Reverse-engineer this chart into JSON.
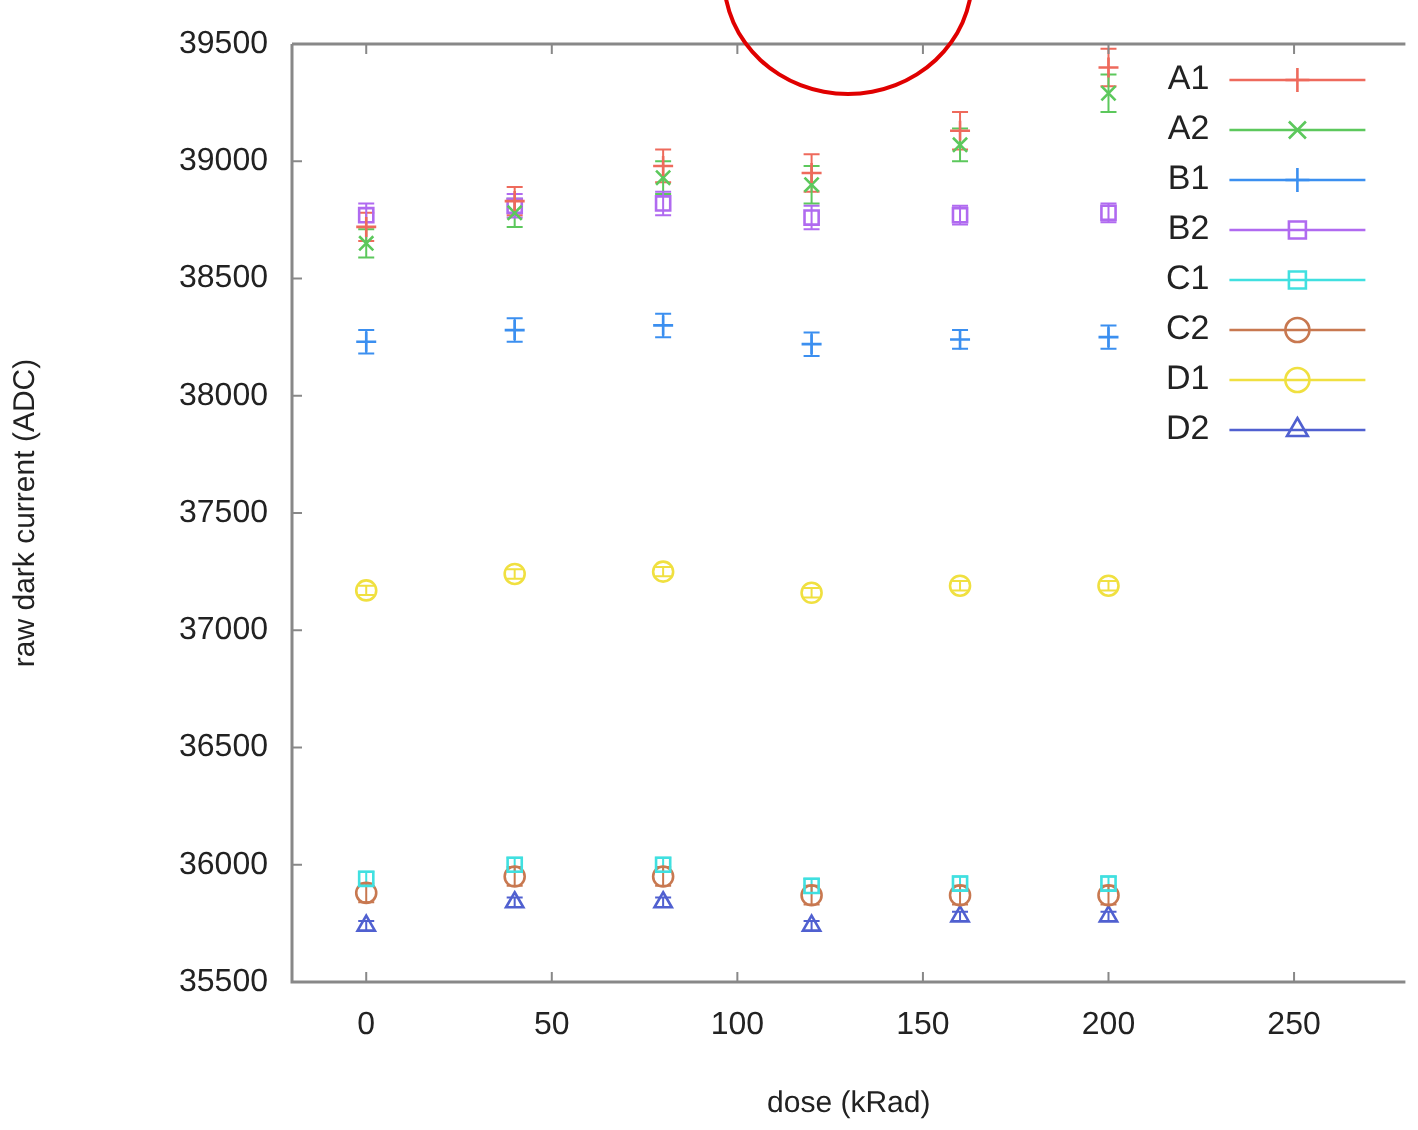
{
  "chart_data": {
    "type": "scatter",
    "xlabel": "dose (kRad)",
    "ylabel": "raw dark current (ADC)",
    "x": [
      0,
      40,
      80,
      120,
      160,
      200
    ],
    "xlim": [
      -20,
      280
    ],
    "xticks": [
      0,
      50,
      100,
      150,
      200,
      250
    ],
    "ylim": [
      35500,
      39500
    ],
    "yticks": [
      35500,
      36000,
      36500,
      37000,
      37500,
      38000,
      38500,
      39000,
      39500
    ],
    "grid": false,
    "legend": "top right",
    "line_style": "solid",
    "series": [
      {
        "name": "A1",
        "color": "#ee6a5c",
        "marker": "cross",
        "values": [
          38720,
          38830,
          38980,
          38950,
          39130,
          39400
        ],
        "errors": [
          60,
          60,
          70,
          80,
          80,
          80
        ]
      },
      {
        "name": "A2",
        "color": "#5cc85c",
        "marker": "x",
        "values": [
          38650,
          38780,
          38930,
          38900,
          39070,
          39290
        ],
        "errors": [
          60,
          60,
          70,
          80,
          70,
          80
        ]
      },
      {
        "name": "B1",
        "color": "#3b8ff0",
        "marker": "cross",
        "values": [
          38230,
          38280,
          38300,
          38220,
          38240,
          38250
        ],
        "errors": [
          50,
          50,
          50,
          50,
          40,
          50
        ]
      },
      {
        "name": "B2",
        "color": "#b06af0",
        "marker": "square",
        "values": [
          38770,
          38810,
          38820,
          38760,
          38770,
          38780
        ],
        "errors": [
          50,
          50,
          50,
          50,
          40,
          40
        ]
      },
      {
        "name": "C1",
        "color": "#40e0e0",
        "marker": "square",
        "values": [
          35940,
          36000,
          36000,
          35910,
          35920,
          35920
        ],
        "errors": [
          30,
          30,
          30,
          30,
          30,
          30
        ]
      },
      {
        "name": "C2",
        "color": "#c87850",
        "marker": "circle",
        "values": [
          35880,
          35950,
          35950,
          35870,
          35870,
          35870
        ],
        "errors": [
          40,
          40,
          40,
          40,
          40,
          40
        ]
      },
      {
        "name": "D1",
        "color": "#f0e040",
        "marker": "circle",
        "values": [
          37170,
          37240,
          37250,
          37160,
          37190,
          37190
        ],
        "errors": [
          20,
          20,
          20,
          20,
          20,
          20
        ]
      },
      {
        "name": "D2",
        "color": "#5060d0",
        "marker": "triangle",
        "values": [
          35740,
          35840,
          35840,
          35740,
          35780,
          35780
        ],
        "errors": [
          20,
          20,
          20,
          20,
          20,
          20
        ]
      }
    ]
  }
}
